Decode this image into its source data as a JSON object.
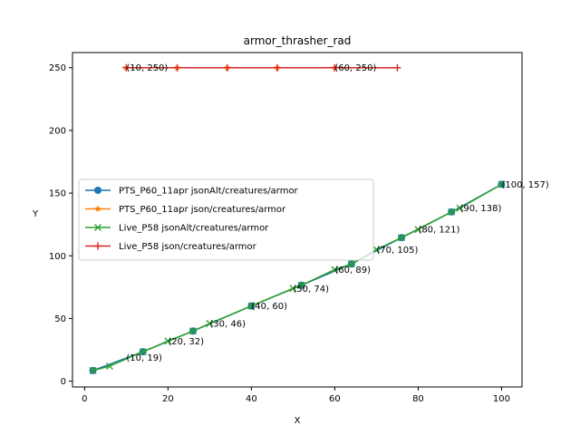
{
  "chart_data": {
    "type": "line",
    "title": "armor_thrasher_rad",
    "xlabel": "X",
    "ylabel": "Y",
    "xlim": [
      -2.9,
      104.9
    ],
    "ylim": [
      -4.6,
      262.1
    ],
    "xticks": [
      0,
      20,
      40,
      60,
      80,
      100
    ],
    "yticks": [
      0,
      50,
      100,
      150,
      200,
      250
    ],
    "grid": false,
    "legend_position": "center-left",
    "series": [
      {
        "name": "PTS_P60_11apr jsonAlt/creatures/armor",
        "color": "#1f77b4",
        "marker": "circle",
        "x": [
          2,
          14,
          26,
          40,
          52,
          64,
          76,
          88,
          100
        ],
        "y": [
          8.5,
          23.5,
          40,
          60,
          76.5,
          93.5,
          114.5,
          135,
          157
        ]
      },
      {
        "name": "PTS_P60_11apr json/creatures/armor",
        "color": "#ff7f0e",
        "marker": "star",
        "x": [
          10,
          22.2,
          34.2,
          46.2,
          60
        ],
        "y": [
          250,
          250,
          250,
          250,
          250
        ]
      },
      {
        "name": "Live_P58 jsonAlt/creatures/armor",
        "color": "#2ca02c",
        "marker": "x",
        "x": [
          2,
          6,
          14,
          20,
          26,
          30,
          40,
          50,
          52,
          60,
          64,
          70,
          76,
          80,
          88,
          90,
          100
        ],
        "y": [
          8.5,
          12,
          23.5,
          32,
          40,
          46,
          60,
          74,
          76.5,
          89,
          93.5,
          105,
          114.5,
          121,
          135,
          138,
          157
        ]
      },
      {
        "name": "Live_P58 json/creatures/armor",
        "color": "#d62728",
        "marker": "plus",
        "x": [
          10,
          22.2,
          34.2,
          46.2,
          60,
          75
        ],
        "y": [
          250,
          250,
          250,
          250,
          250,
          250
        ]
      }
    ],
    "annotations": [
      {
        "text": "(10, 250)",
        "x": 10,
        "y": 250
      },
      {
        "text": "(60, 250)",
        "x": 60,
        "y": 250
      },
      {
        "text": "(10, 19)",
        "x": 10,
        "y": 19
      },
      {
        "text": "(20, 32)",
        "x": 20,
        "y": 32
      },
      {
        "text": "(30, 46)",
        "x": 30,
        "y": 46
      },
      {
        "text": "(40, 60)",
        "x": 40,
        "y": 60
      },
      {
        "text": "(50, 74)",
        "x": 50,
        "y": 74
      },
      {
        "text": "(60, 89)",
        "x": 60,
        "y": 89
      },
      {
        "text": "(70, 105)",
        "x": 70,
        "y": 105
      },
      {
        "text": "(80, 121)",
        "x": 80,
        "y": 121
      },
      {
        "text": "(90, 138)",
        "x": 90,
        "y": 138
      },
      {
        "text": "(100, 157)",
        "x": 100,
        "y": 157
      }
    ]
  }
}
